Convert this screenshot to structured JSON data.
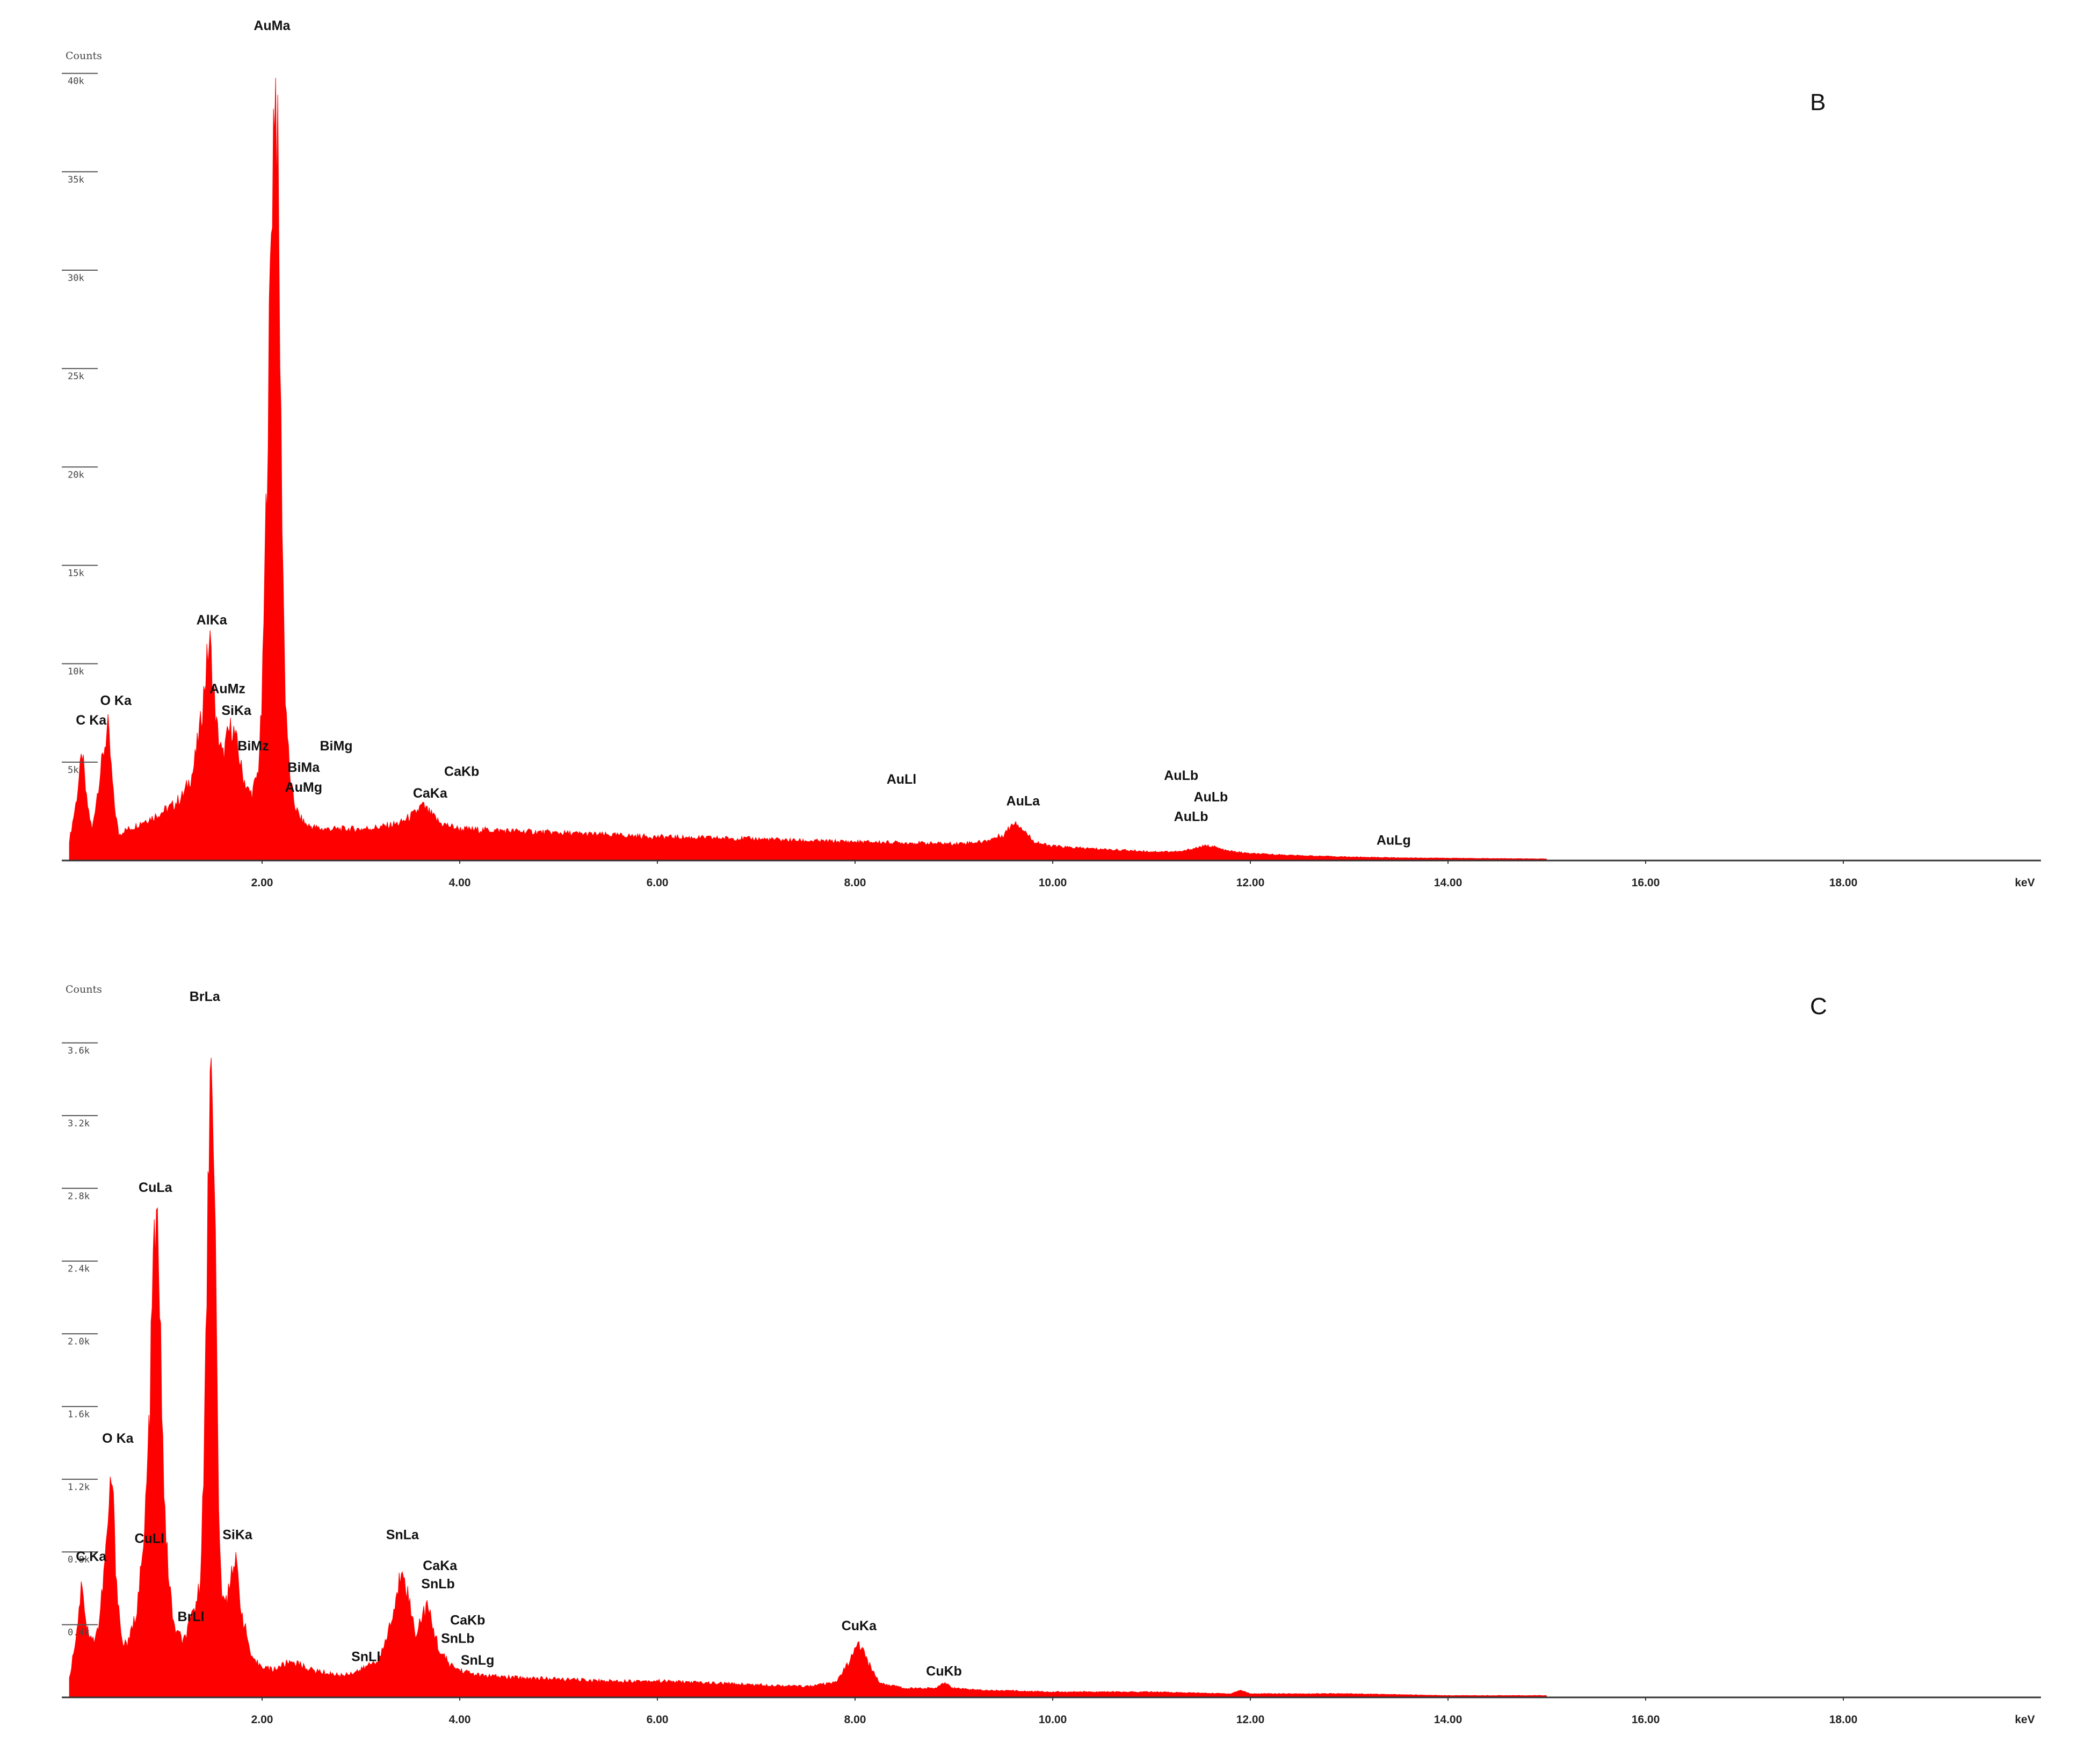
{
  "colors": {
    "spectrum": "#ff0000",
    "axis": "#333333",
    "text": "#111111",
    "background": "#ffffff"
  },
  "chart_data": [
    {
      "type": "area",
      "panel_label": "B",
      "ylabel": "Counts",
      "xlabel_unit": "keV",
      "xlim": [
        0,
        20
      ],
      "ylim": [
        0,
        41
      ],
      "x_ticks": [
        2,
        4,
        6,
        8,
        10,
        12,
        14,
        16,
        18
      ],
      "x_tick_labels": [
        "2.00",
        "4.00",
        "6.00",
        "8.00",
        "10.00",
        "12.00",
        "14.00",
        "16.00",
        "18.00"
      ],
      "y_ticks": [
        5,
        10,
        15,
        20,
        25,
        30,
        35,
        40
      ],
      "y_tick_labels": [
        "5k",
        "10k",
        "15k",
        "20k",
        "25k",
        "30k",
        "35k",
        "40k"
      ],
      "series": [
        {
          "x": [
            0.05,
            0.12,
            0.18,
            0.22,
            0.28,
            0.32,
            0.38,
            0.44,
            0.5,
            0.55,
            0.6,
            0.7,
            0.8,
            0.9,
            1.0,
            1.1,
            1.2,
            1.3,
            1.38,
            1.44,
            1.47,
            1.5,
            1.54,
            1.6,
            1.66,
            1.7,
            1.74,
            1.8,
            1.86,
            1.9,
            1.96,
            2.0,
            2.05,
            2.1,
            2.13,
            2.16,
            2.19,
            2.23,
            2.28,
            2.33,
            2.38,
            2.45,
            2.6,
            2.8,
            3.0,
            3.2,
            3.4,
            3.55,
            3.62,
            3.7,
            3.8,
            4.0,
            4.5,
            5.0,
            5.5,
            6.0,
            6.5,
            7.0,
            7.5,
            8.0,
            8.5,
            9.0,
            9.3,
            9.5,
            9.62,
            9.7,
            9.8,
            9.95,
            10.2,
            10.6,
            11.0,
            11.3,
            11.5,
            11.6,
            11.75,
            12.0,
            12.5,
            13.0,
            13.5,
            14.0,
            14.5,
            15.0
          ],
          "y": [
            1.0,
            3.0,
            5.5,
            3.2,
            1.5,
            3.0,
            5.0,
            6.8,
            3.0,
            1.3,
            1.5,
            1.7,
            2.0,
            2.2,
            2.5,
            2.8,
            3.3,
            4.5,
            7.0,
            10.0,
            11.2,
            9.2,
            6.8,
            5.2,
            6.5,
            6.8,
            6.0,
            4.4,
            3.5,
            3.4,
            4.5,
            8.0,
            20.0,
            34.0,
            40.5,
            35.0,
            22.0,
            9.0,
            4.2,
            2.8,
            2.2,
            1.8,
            1.6,
            1.6,
            1.6,
            1.7,
            1.9,
            2.4,
            2.8,
            2.4,
            1.9,
            1.6,
            1.5,
            1.4,
            1.3,
            1.2,
            1.15,
            1.1,
            1.0,
            0.95,
            0.9,
            0.85,
            0.95,
            1.3,
            2.0,
            1.6,
            1.0,
            0.75,
            0.65,
            0.55,
            0.45,
            0.45,
            0.7,
            0.75,
            0.5,
            0.35,
            0.25,
            0.18,
            0.14,
            0.12,
            0.1,
            0.08
          ]
        }
      ],
      "peak_labels": [
        {
          "text": "AuMa",
          "x": 2.1,
          "y": 42.2
        },
        {
          "text": "AlKa",
          "x": 1.49,
          "y": 12.0
        },
        {
          "text": "AuMz",
          "x": 1.65,
          "y": 8.5
        },
        {
          "text": "SiKa",
          "x": 1.74,
          "y": 7.4
        },
        {
          "text": "O Ka",
          "x": 0.52,
          "y": 7.9
        },
        {
          "text": "C Ka",
          "x": 0.27,
          "y": 6.9
        },
        {
          "text": "BiMz",
          "x": 1.91,
          "y": 5.6
        },
        {
          "text": "BiMg",
          "x": 2.75,
          "y": 5.6
        },
        {
          "text": "BiMa",
          "x": 2.42,
          "y": 4.5
        },
        {
          "text": "AuMg",
          "x": 2.42,
          "y": 3.5
        },
        {
          "text": "CaKb",
          "x": 4.02,
          "y": 4.3
        },
        {
          "text": "CaKa",
          "x": 3.7,
          "y": 3.2
        },
        {
          "text": "AuLl",
          "x": 8.47,
          "y": 3.9
        },
        {
          "text": "AuLa",
          "x": 9.7,
          "y": 2.8
        },
        {
          "text": "AuLb",
          "x": 11.3,
          "y": 4.1
        },
        {
          "text": "AuLb",
          "x": 11.6,
          "y": 3.0
        },
        {
          "text": "AuLb",
          "x": 11.4,
          "y": 2.0
        },
        {
          "text": "AuLg",
          "x": 13.45,
          "y": 0.8
        }
      ]
    },
    {
      "type": "area",
      "panel_label": "C",
      "ylabel": "Counts",
      "xlabel_unit": "keV",
      "xlim": [
        0,
        20
      ],
      "ylim": [
        0,
        3.9
      ],
      "x_ticks": [
        2,
        4,
        6,
        8,
        10,
        12,
        14,
        16,
        18
      ],
      "x_tick_labels": [
        "2.00",
        "4.00",
        "6.00",
        "8.00",
        "10.00",
        "12.00",
        "14.00",
        "16.00",
        "18.00"
      ],
      "y_ticks": [
        0.4,
        0.8,
        1.2,
        1.6,
        2.0,
        2.4,
        2.8,
        3.2,
        3.6
      ],
      "y_tick_labels": [
        "0.4k",
        "0.8k",
        "1.2k",
        "1.6k",
        "2.0k",
        "2.4k",
        "2.8k",
        "3.2k",
        "3.6k"
      ],
      "series": [
        {
          "x": [
            0.05,
            0.12,
            0.18,
            0.22,
            0.28,
            0.35,
            0.42,
            0.48,
            0.52,
            0.58,
            0.65,
            0.72,
            0.8,
            0.86,
            0.9,
            0.93,
            0.97,
            1.02,
            1.1,
            1.2,
            1.27,
            1.32,
            1.37,
            1.42,
            1.46,
            1.49,
            1.52,
            1.56,
            1.6,
            1.65,
            1.7,
            1.74,
            1.8,
            1.9,
            2.1,
            2.3,
            2.5,
            2.8,
            3.0,
            3.2,
            3.35,
            3.42,
            3.48,
            3.55,
            3.62,
            3.67,
            3.72,
            3.8,
            3.9,
            4.0,
            4.2,
            4.5,
            5.0,
            5.5,
            6.0,
            6.5,
            7.0,
            7.5,
            7.8,
            7.95,
            8.04,
            8.12,
            8.25,
            8.5,
            8.8,
            8.9,
            9.0,
            9.3,
            10.0,
            11.0,
            11.8,
            11.9,
            12.0,
            13.0,
            14.0,
            15.0
          ],
          "y": [
            0.1,
            0.35,
            0.65,
            0.4,
            0.3,
            0.4,
            0.8,
            1.25,
            0.7,
            0.3,
            0.3,
            0.45,
            0.8,
            1.5,
            2.4,
            2.65,
            2.0,
            0.9,
            0.4,
            0.3,
            0.4,
            0.5,
            0.6,
            1.5,
            3.0,
            3.78,
            2.8,
            1.0,
            0.5,
            0.55,
            0.75,
            0.72,
            0.45,
            0.2,
            0.15,
            0.2,
            0.15,
            0.12,
            0.15,
            0.22,
            0.5,
            0.75,
            0.55,
            0.35,
            0.45,
            0.5,
            0.4,
            0.25,
            0.18,
            0.15,
            0.12,
            0.11,
            0.1,
            0.09,
            0.09,
            0.08,
            0.07,
            0.06,
            0.08,
            0.2,
            0.3,
            0.2,
            0.08,
            0.05,
            0.05,
            0.08,
            0.05,
            0.04,
            0.03,
            0.03,
            0.02,
            0.04,
            0.02,
            0.02,
            0.01,
            0.01
          ]
        }
      ],
      "peak_labels": [
        {
          "text": "BrLa",
          "x": 1.42,
          "y": 3.83
        },
        {
          "text": "CuLa",
          "x": 0.92,
          "y": 2.78
        },
        {
          "text": "O Ka",
          "x": 0.54,
          "y": 1.4
        },
        {
          "text": "CuLl",
          "x": 0.86,
          "y": 0.85
        },
        {
          "text": "C Ka",
          "x": 0.27,
          "y": 0.75
        },
        {
          "text": "SiKa",
          "x": 1.75,
          "y": 0.87
        },
        {
          "text": "BrLl",
          "x": 1.28,
          "y": 0.42
        },
        {
          "text": "SnLl",
          "x": 3.05,
          "y": 0.2
        },
        {
          "text": "SnLa",
          "x": 3.42,
          "y": 0.87
        },
        {
          "text": "CaKa",
          "x": 3.8,
          "y": 0.7
        },
        {
          "text": "SnLb",
          "x": 3.78,
          "y": 0.6
        },
        {
          "text": "CaKb",
          "x": 4.08,
          "y": 0.4
        },
        {
          "text": "SnLb",
          "x": 3.98,
          "y": 0.3
        },
        {
          "text": "SnLg",
          "x": 4.18,
          "y": 0.18
        },
        {
          "text": "CuKa",
          "x": 8.04,
          "y": 0.37
        },
        {
          "text": "CuKb",
          "x": 8.9,
          "y": 0.12
        }
      ]
    }
  ]
}
